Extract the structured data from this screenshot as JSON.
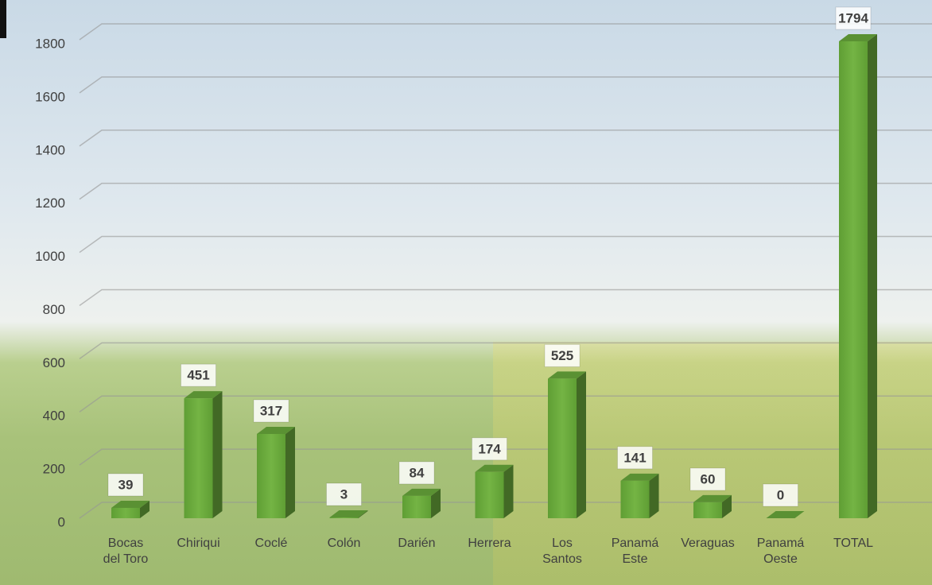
{
  "chart_data": {
    "type": "bar",
    "categories": [
      "Bocas del Toro",
      "Chiriqui",
      "Coclé",
      "Colón",
      "Darién",
      "Herrera",
      "Los Santos",
      "Panamá Este",
      "Veraguas",
      "Panamá Oeste",
      "TOTAL"
    ],
    "values": [
      39,
      451,
      317,
      3,
      84,
      174,
      525,
      141,
      60,
      0,
      1794
    ],
    "color": "#6aaa3c",
    "ylim": [
      0,
      1800
    ],
    "yticks": [
      0,
      200,
      400,
      600,
      800,
      1000,
      1200,
      1400,
      1600,
      1800
    ],
    "grid": true
  }
}
